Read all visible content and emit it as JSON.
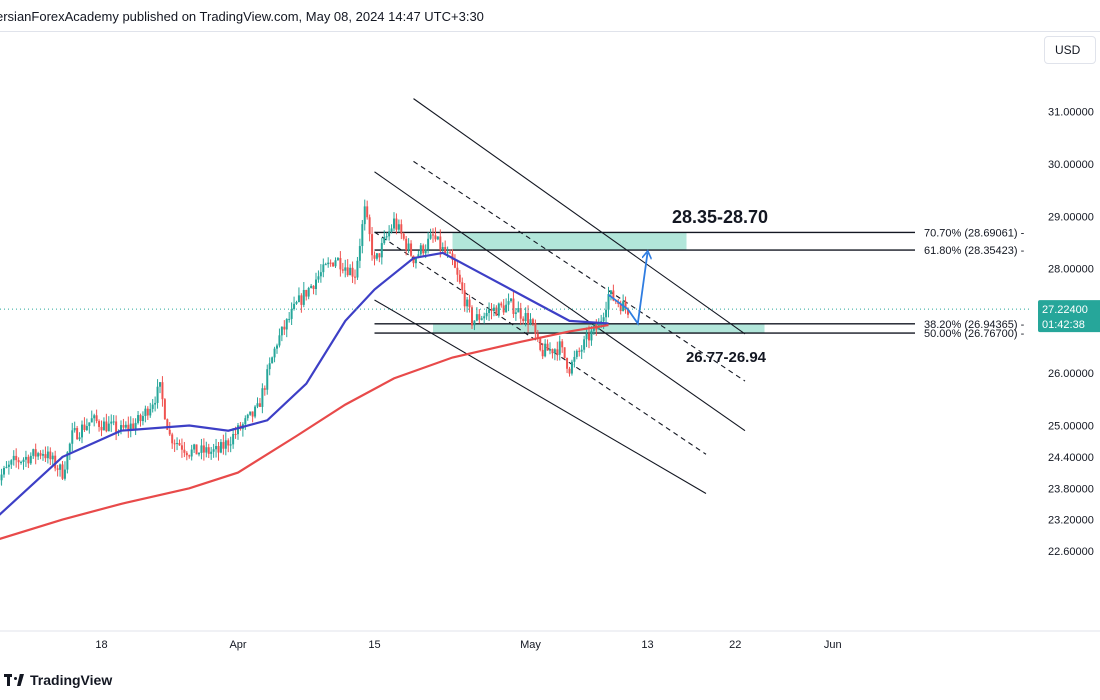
{
  "header": {
    "publish_text": "ersianForexAcademy published on TradingView.com, May 08, 2024 14:47 UTC+3:30",
    "currency": "USD"
  },
  "footer": {
    "brand": "TradingView"
  },
  "colors": {
    "candle_up": "#26a69a",
    "candle_down": "#ef5350",
    "ma_fast": "#3d3fc6",
    "ma_slow": "#e84a4a",
    "zone_fill": "#7fd6c2",
    "last_price_bg": "#26a69a"
  },
  "chart_data": {
    "type": "candlestick",
    "symbol_note": "",
    "ylim": [
      22.3,
      31.6
    ],
    "yticks": [
      {
        "value": 31.0,
        "label": "31.00000"
      },
      {
        "value": 30.0,
        "label": "30.00000"
      },
      {
        "value": 29.0,
        "label": "29.00000"
      },
      {
        "value": 28.0,
        "label": "28.00000"
      },
      {
        "value": 26.0,
        "label": "26.00000"
      },
      {
        "value": 25.0,
        "label": "25.00000"
      },
      {
        "value": 24.4,
        "label": "24.40000"
      },
      {
        "value": 23.8,
        "label": "23.80000"
      },
      {
        "value": 23.2,
        "label": "23.20000"
      },
      {
        "value": 22.6,
        "label": "22.60000"
      }
    ],
    "xticks": [
      {
        "date": "2024-03-18",
        "label": "18"
      },
      {
        "date": "2024-04-01",
        "label": "Apr"
      },
      {
        "date": "2024-04-15",
        "label": "15"
      },
      {
        "date": "2024-05-01",
        "label": "May"
      },
      {
        "date": "2024-05-13",
        "label": "13"
      },
      {
        "date": "2024-05-22",
        "label": "22"
      },
      {
        "date": "2024-06-01",
        "label": "Jun"
      }
    ],
    "price_path": [
      [
        "2024-03-07",
        23.9
      ],
      [
        "2024-03-09",
        24.3
      ],
      [
        "2024-03-12",
        24.5
      ],
      [
        "2024-03-14",
        24.1
      ],
      [
        "2024-03-15",
        24.8
      ],
      [
        "2024-03-17",
        25.1
      ],
      [
        "2024-03-20",
        24.9
      ],
      [
        "2024-03-22",
        25.1
      ],
      [
        "2024-03-24",
        25.7
      ],
      [
        "2024-03-25",
        24.8
      ],
      [
        "2024-03-27",
        24.5
      ],
      [
        "2024-03-30",
        24.5
      ],
      [
        "2024-04-01",
        24.9
      ],
      [
        "2024-04-03",
        25.3
      ],
      [
        "2024-04-05",
        26.6
      ],
      [
        "2024-04-07",
        27.3
      ],
      [
        "2024-04-09",
        27.8
      ],
      [
        "2024-04-11",
        28.2
      ],
      [
        "2024-04-13",
        27.9
      ],
      [
        "2024-04-14",
        29.1
      ],
      [
        "2024-04-15",
        28.1
      ],
      [
        "2024-04-17",
        28.9
      ],
      [
        "2024-04-19",
        28.2
      ],
      [
        "2024-04-21",
        28.6
      ],
      [
        "2024-04-23",
        28.1
      ],
      [
        "2024-04-25",
        27.0
      ],
      [
        "2024-04-27",
        27.2
      ],
      [
        "2024-04-29",
        27.3
      ],
      [
        "2024-05-01",
        27.0
      ],
      [
        "2024-05-02",
        26.4
      ],
      [
        "2024-05-04",
        26.5
      ],
      [
        "2024-05-05",
        26.1
      ],
      [
        "2024-05-07",
        26.7
      ],
      [
        "2024-05-08",
        26.9
      ],
      [
        "2024-05-09",
        27.5
      ],
      [
        "2024-05-11",
        27.22
      ]
    ],
    "moving_averages": [
      {
        "name": "",
        "color": "#3d3fc6",
        "points": [
          [
            "2024-03-07",
            23.2
          ],
          [
            "2024-03-14",
            24.4
          ],
          [
            "2024-03-20",
            24.9
          ],
          [
            "2024-03-27",
            25.0
          ],
          [
            "2024-03-31",
            24.9
          ],
          [
            "2024-04-04",
            25.1
          ],
          [
            "2024-04-08",
            25.8
          ],
          [
            "2024-04-12",
            27.0
          ],
          [
            "2024-04-15",
            27.6
          ],
          [
            "2024-04-19",
            28.2
          ],
          [
            "2024-04-22",
            28.3
          ],
          [
            "2024-04-26",
            27.9
          ],
          [
            "2024-05-01",
            27.4
          ],
          [
            "2024-05-05",
            27.0
          ],
          [
            "2024-05-09",
            26.95
          ]
        ]
      },
      {
        "name": "",
        "color": "#e84a4a",
        "points": [
          [
            "2024-03-07",
            22.8
          ],
          [
            "2024-03-14",
            23.2
          ],
          [
            "2024-03-20",
            23.5
          ],
          [
            "2024-03-27",
            23.8
          ],
          [
            "2024-04-01",
            24.1
          ],
          [
            "2024-04-07",
            24.8
          ],
          [
            "2024-04-12",
            25.4
          ],
          [
            "2024-04-17",
            25.9
          ],
          [
            "2024-04-23",
            26.3
          ],
          [
            "2024-04-30",
            26.6
          ],
          [
            "2024-05-05",
            26.8
          ],
          [
            "2024-05-09",
            26.92
          ]
        ]
      }
    ],
    "zones": [
      {
        "label": "28.35-28.70",
        "low": 28.35,
        "high": 28.7,
        "from": "2024-04-23",
        "to": "2024-05-17"
      },
      {
        "label": "26.77-26.94",
        "low": 26.77,
        "high": 26.94,
        "from": "2024-04-21",
        "to": "2024-05-25"
      }
    ],
    "fib_levels": [
      {
        "label": "70.70% (28.69061)",
        "value": 28.69061
      },
      {
        "label": "61.80% (28.35423)",
        "value": 28.35423
      },
      {
        "label": "38.20% (26.94365)",
        "value": 26.94365
      },
      {
        "label": "50.00% (26.76700)",
        "value": 26.767
      }
    ],
    "fib_from": "2024-04-15",
    "channels": [
      {
        "style": "solid",
        "from": [
          "2024-04-19",
          31.25
        ],
        "to": [
          "2024-05-23",
          26.75
        ]
      },
      {
        "style": "dashed",
        "from": [
          "2024-04-19",
          30.05
        ],
        "to": [
          "2024-05-23",
          25.85
        ]
      },
      {
        "style": "solid",
        "from": [
          "2024-04-15",
          29.85
        ],
        "to": [
          "2024-05-23",
          24.9
        ]
      },
      {
        "style": "dashed",
        "from": [
          "2024-04-15",
          28.7
        ],
        "to": [
          "2024-05-19",
          24.45
        ]
      },
      {
        "style": "solid",
        "from": [
          "2024-04-15",
          27.4
        ],
        "to": [
          "2024-05-19",
          23.7
        ]
      }
    ],
    "projection": [
      [
        "2024-05-09",
        27.5
      ],
      [
        "2024-05-11",
        27.22
      ],
      [
        "2024-05-12",
        26.95
      ],
      [
        "2024-05-13",
        28.3
      ]
    ],
    "last_price": {
      "value": 27.224,
      "label": "27.22400",
      "countdown": "01:42:38"
    }
  }
}
